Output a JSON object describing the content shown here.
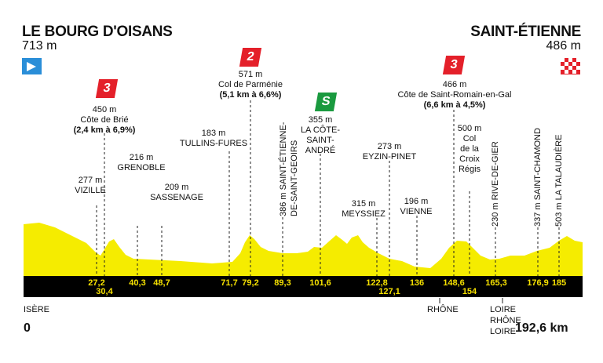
{
  "start": {
    "city": "LE BOURG D'OISANS",
    "alt": "713 m"
  },
  "finish": {
    "city": "SAINT-ÉTIENNE",
    "alt": "486 m"
  },
  "colors": {
    "profile": "#f5ec00",
    "band": "#000000",
    "km_text": "#f3e200",
    "climb_red": "#e4202a",
    "sprint_green": "#1a9a3f",
    "start_flag": "#2a8ed8"
  },
  "climbs": [
    {
      "cat": "3",
      "alt": "450 m",
      "name": "Côte de Brié",
      "detail": "(2,4 km à 6,9%)"
    },
    {
      "cat": "2",
      "alt": "571 m",
      "name": "Col de Parménie",
      "detail": "(5,1 km à 6,6%)"
    },
    {
      "cat": "3",
      "alt": "466 m",
      "name": "Côte de Saint-Romain-en-Gal",
      "detail": "(6,6 km à 4,5%)"
    }
  ],
  "sprint": {
    "label": "S",
    "alt": "355 m",
    "name_lines": [
      "LA CÔTE-",
      "SAINT-",
      "ANDRÉ"
    ]
  },
  "points": {
    "vizille": {
      "alt": "277 m",
      "name": "VIZILLE"
    },
    "grenoble": {
      "alt": "216 m",
      "name": "GRENOBLE"
    },
    "sassenage": {
      "alt": "209 m",
      "name": "SASSENAGE"
    },
    "tullins": {
      "alt": "183 m",
      "name": "TULLINS-FURES"
    },
    "eyzin": {
      "alt": "273 m",
      "name": "EYZIN-PINET"
    },
    "meyssiez": {
      "alt": "315 m",
      "name": "MEYSSIEZ"
    },
    "vienne": {
      "alt": "196 m",
      "name": "VIENNE"
    },
    "croix": {
      "alt": "500 m",
      "lines": [
        "Col",
        "de la",
        "Croix",
        "Régis"
      ]
    }
  },
  "vertical": [
    "386 m SAINT-ÉTIENNE-",
    "DE-SAINT-GEOIRS",
    "230 m RIVE-DE-GIER",
    "337 m SAINT-CHAMOND",
    "503 m LA TALAUDIÈRE"
  ],
  "km_marks": [
    "27,2",
    "30,4",
    "40,3",
    "48,7",
    "71,7",
    "79,2",
    "89,3",
    "101,6",
    "122,8",
    "127,1",
    "136",
    "148,6",
    "154",
    "165,3",
    "176,9",
    "185"
  ],
  "regions": {
    "isere": "ISÈRE",
    "rhone": "RHÔNE",
    "loire1": "LOIRE",
    "rhone2": "RHÔNE",
    "loire2": "LOIRE"
  },
  "distance": {
    "start": "0",
    "end": "192,6 km"
  }
}
